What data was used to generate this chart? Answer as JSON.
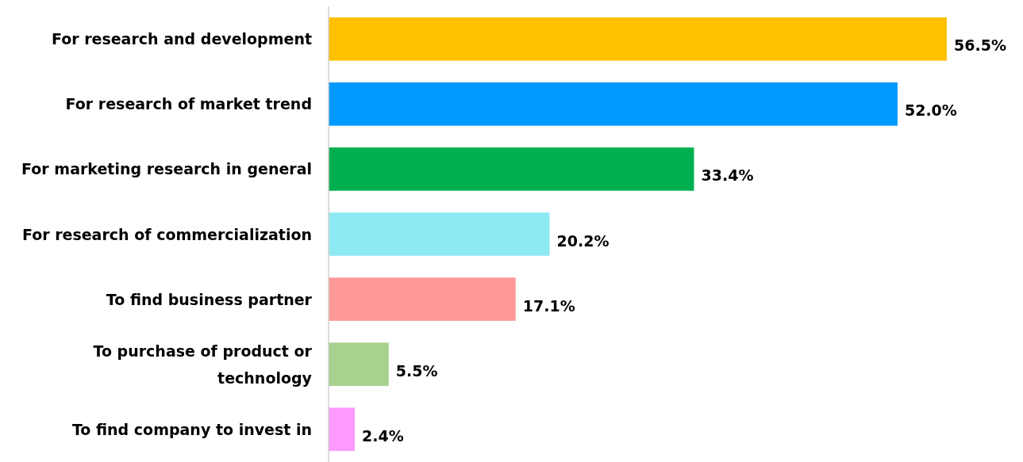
{
  "chart_data": {
    "type": "bar",
    "orientation": "horizontal",
    "categories": [
      "For research and development",
      "For research of market trend",
      "For marketing research in general",
      "For research of commercialization",
      "To find business partner",
      "To purchase of product or technology",
      "To find company to invest in"
    ],
    "values": [
      56.5,
      52.0,
      33.4,
      20.2,
      17.1,
      5.5,
      2.4
    ],
    "colors": [
      "#ffc000",
      "#0099ff",
      "#00b050",
      "#8eeaf2",
      "#ff9999",
      "#a9d18e",
      "#ff99ff"
    ],
    "value_labels": [
      "56.5%",
      "52.0%",
      "33.4%",
      "20.2%",
      "17.1%",
      "5.5%",
      "2.4%"
    ]
  }
}
